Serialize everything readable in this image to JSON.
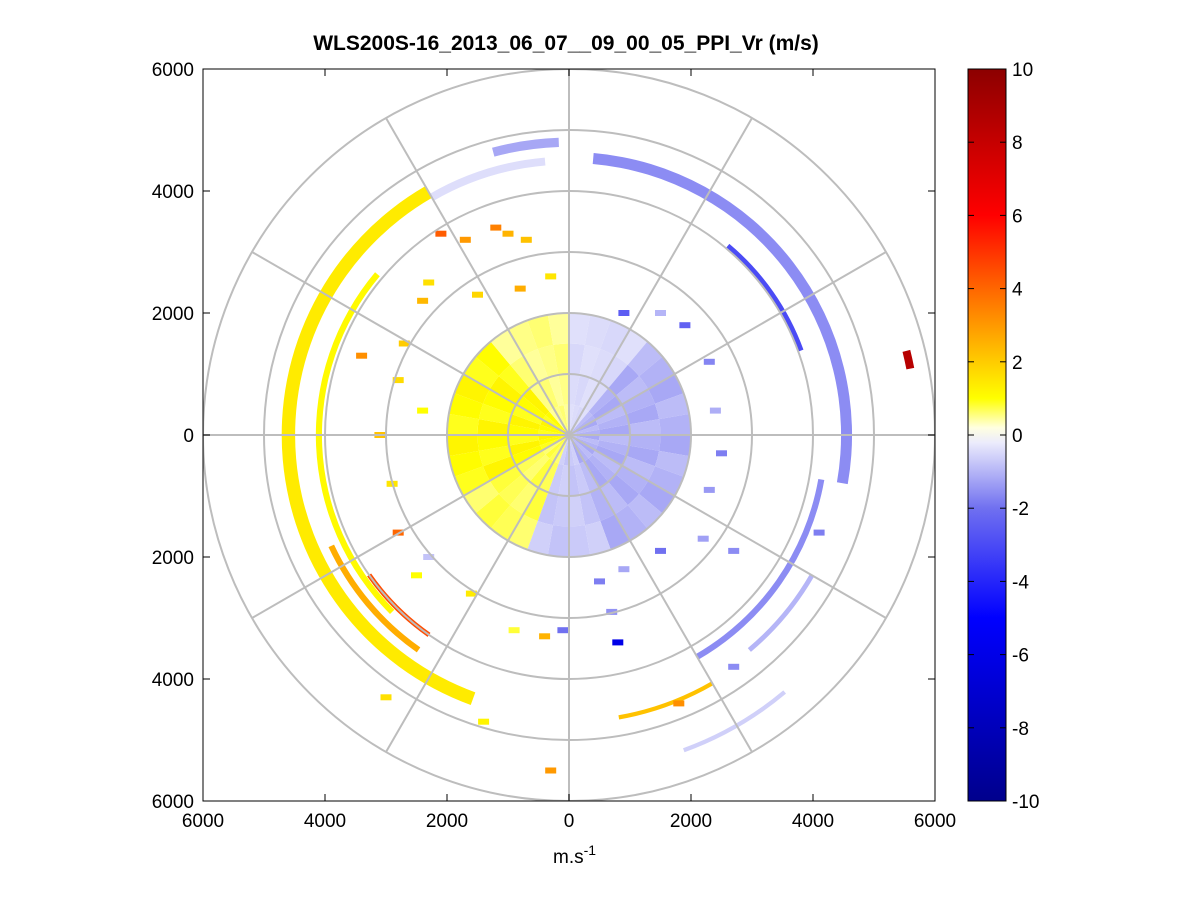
{
  "chart_data": {
    "type": "polar-ppi",
    "title": "WLS200S-16_2013_06_07__09_00_05_PPI_Vr (m/s)",
    "xlabel": "m.s",
    "xlabel_exponent": "-1",
    "ylabel": "",
    "xlim": [
      -6000,
      6000
    ],
    "ylim": [
      -6000,
      6000
    ],
    "x_ticks": [
      "6000",
      "4000",
      "2000",
      "0",
      "2000",
      "4000",
      "6000"
    ],
    "x_tick_values": [
      -6000,
      -4000,
      -2000,
      0,
      2000,
      4000,
      6000
    ],
    "y_ticks": [
      "6000",
      "4000",
      "2000",
      "0",
      "2000",
      "4000",
      "6000"
    ],
    "y_tick_values": [
      6000,
      4000,
      2000,
      0,
      -2000,
      -4000,
      -6000
    ],
    "range_rings_m": [
      1000,
      2000,
      3000,
      4000,
      5000,
      6000
    ],
    "azimuth_spokes_deg": [
      0,
      30,
      60,
      90,
      120,
      150,
      180,
      210,
      240,
      270,
      300,
      330
    ],
    "colorbar": {
      "label_ticks": [
        "10",
        "8",
        "6",
        "4",
        "2",
        "0",
        "-2",
        "-4",
        "-6",
        "-8",
        "-10"
      ],
      "range": [
        -10,
        10
      ],
      "stops": [
        {
          "v": -10,
          "c": "#00008c"
        },
        {
          "v": -5,
          "c": "#0000ff"
        },
        {
          "v": -2,
          "c": "#7070f0"
        },
        {
          "v": -0.2,
          "c": "#ececfc"
        },
        {
          "v": 0.2,
          "c": "#ffffe0"
        },
        {
          "v": 1,
          "c": "#ffff00"
        },
        {
          "v": 3,
          "c": "#ff9900"
        },
        {
          "v": 6,
          "c": "#ff0000"
        },
        {
          "v": 10,
          "c": "#8c0000"
        }
      ]
    },
    "inner_field": {
      "r_min_m": 0,
      "r_max_m": 2000,
      "description": "dense radial velocity near lidar",
      "sectors": [
        {
          "az_from": 0,
          "az_to": 40,
          "vr": -0.5
        },
        {
          "az_from": 40,
          "az_to": 160,
          "vr": -1.2
        },
        {
          "az_from": 160,
          "az_to": 200,
          "vr": -0.8
        },
        {
          "az_from": 200,
          "az_to": 240,
          "vr": 0.8
        },
        {
          "az_from": 240,
          "az_to": 320,
          "vr": 1.2
        },
        {
          "az_from": 320,
          "az_to": 360,
          "vr": 0.6
        }
      ]
    },
    "arcs": [
      {
        "r": 4550,
        "az_from": 5,
        "az_to": 100,
        "vr": -1.6,
        "w": 180
      },
      {
        "r": 4050,
        "az_from": 40,
        "az_to": 70,
        "vr": -3.0,
        "w": 80
      },
      {
        "r": 4200,
        "az_from": 100,
        "az_to": 150,
        "vr": -1.6,
        "w": 100
      },
      {
        "r": 4600,
        "az_from": 120,
        "az_to": 140,
        "vr": -1.0,
        "w": 80
      },
      {
        "r": 5500,
        "az_from": 140,
        "az_to": 160,
        "vr": -0.6,
        "w": 70
      },
      {
        "r": 4500,
        "az_from": 330,
        "az_to": 355,
        "vr": -0.4,
        "w": 130
      },
      {
        "r": 4600,
        "az_from": 200,
        "az_to": 330,
        "vr": 1.4,
        "w": 220
      },
      {
        "r": 4100,
        "az_from": 225,
        "az_to": 310,
        "vr": 1.1,
        "w": 100
      },
      {
        "r": 4300,
        "az_from": 215,
        "az_to": 245,
        "vr": 2.6,
        "w": 100
      },
      {
        "r": 4000,
        "az_from": 215,
        "az_to": 235,
        "vr": 4.5,
        "w": 80
      },
      {
        "r": 4700,
        "az_from": 150,
        "az_to": 170,
        "vr": 2.2,
        "w": 70
      },
      {
        "r": 4800,
        "az_from": 345,
        "az_to": 358,
        "vr": -1.2,
        "w": 150
      },
      {
        "r": 5700,
        "az_from": 76,
        "az_to": 79,
        "vr": 8.5,
        "w": 130
      }
    ],
    "scatter_bins": [
      {
        "x": -1200,
        "y": 3400,
        "vr": 3.5
      },
      {
        "x": -1000,
        "y": 3300,
        "vr": 2.5
      },
      {
        "x": -700,
        "y": 3200,
        "vr": 2.2
      },
      {
        "x": -1700,
        "y": 3200,
        "vr": 3.0
      },
      {
        "x": -2100,
        "y": 3300,
        "vr": 4.2
      },
      {
        "x": -2300,
        "y": 2500,
        "vr": 1.6
      },
      {
        "x": -2400,
        "y": 2200,
        "vr": 2.4
      },
      {
        "x": -1500,
        "y": 2300,
        "vr": 1.8
      },
      {
        "x": -800,
        "y": 2400,
        "vr": 2.6
      },
      {
        "x": -300,
        "y": 2600,
        "vr": 1.5
      },
      {
        "x": -3400,
        "y": 1300,
        "vr": 3.2
      },
      {
        "x": -2700,
        "y": 1500,
        "vr": 2.0
      },
      {
        "x": -2800,
        "y": 900,
        "vr": 1.7
      },
      {
        "x": -2400,
        "y": 400,
        "vr": 1.0
      },
      {
        "x": -3100,
        "y": 0,
        "vr": 2.2
      },
      {
        "x": -2900,
        "y": -800,
        "vr": 1.5
      },
      {
        "x": -2800,
        "y": -1600,
        "vr": 4.0
      },
      {
        "x": -2500,
        "y": -2300,
        "vr": 1.0
      },
      {
        "x": -2300,
        "y": -2000,
        "vr": -0.8
      },
      {
        "x": -1600,
        "y": -2600,
        "vr": 1.4
      },
      {
        "x": -900,
        "y": -3200,
        "vr": 0.8
      },
      {
        "x": -400,
        "y": -3300,
        "vr": 2.5
      },
      {
        "x": -100,
        "y": -3200,
        "vr": -2.0
      },
      {
        "x": 800,
        "y": -3400,
        "vr": -6.0
      },
      {
        "x": 700,
        "y": -2900,
        "vr": -1.5
      },
      {
        "x": 500,
        "y": -2400,
        "vr": -1.8
      },
      {
        "x": 900,
        "y": -2200,
        "vr": -1.2
      },
      {
        "x": 1500,
        "y": -1900,
        "vr": -2.0
      },
      {
        "x": 2200,
        "y": -1700,
        "vr": -1.3
      },
      {
        "x": 2700,
        "y": -1900,
        "vr": -1.6
      },
      {
        "x": 2300,
        "y": -900,
        "vr": -1.4
      },
      {
        "x": 2500,
        "y": -300,
        "vr": -1.8
      },
      {
        "x": 2400,
        "y": 400,
        "vr": -1.1
      },
      {
        "x": 2300,
        "y": 1200,
        "vr": -1.7
      },
      {
        "x": 1900,
        "y": 1800,
        "vr": -2.4
      },
      {
        "x": 1500,
        "y": 2000,
        "vr": -1.0
      },
      {
        "x": 900,
        "y": 2000,
        "vr": -2.5
      },
      {
        "x": -1400,
        "y": -4700,
        "vr": 1.2
      },
      {
        "x": -300,
        "y": -5500,
        "vr": 3.0
      },
      {
        "x": -3000,
        "y": -4300,
        "vr": 1.6
      },
      {
        "x": 1800,
        "y": -4400,
        "vr": 3.2
      },
      {
        "x": 2700,
        "y": -3800,
        "vr": -1.6
      },
      {
        "x": 4100,
        "y": -1600,
        "vr": -1.8
      }
    ]
  }
}
